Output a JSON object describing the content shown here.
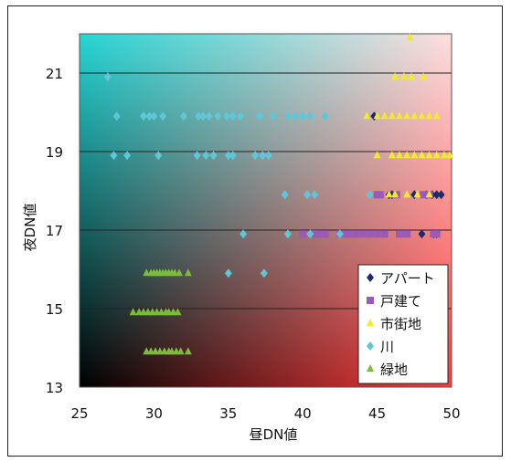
{
  "chart_data": {
    "type": "scatter",
    "title": "",
    "xlabel": "昼DN値",
    "ylabel": "夜DN値",
    "xlim": [
      25,
      50
    ],
    "ylim": [
      13,
      22
    ],
    "x_ticks": [
      "25",
      "30",
      "35",
      "40",
      "45",
      "50"
    ],
    "y_ticks": [
      "13",
      "15",
      "17",
      "19",
      "21"
    ],
    "horizontal_gridlines": true,
    "legend_position": "bottom-right",
    "series": [
      {
        "name": "アパート",
        "marker": "diamond",
        "color": "#1f2a6b",
        "points": [
          [
            46.0,
            17.9
          ],
          [
            47.5,
            17.9
          ],
          [
            48.3,
            17.9
          ],
          [
            48.7,
            17.9
          ],
          [
            49.0,
            17.9
          ],
          [
            49.3,
            17.9
          ],
          [
            48.0,
            16.9
          ],
          [
            48.8,
            16.9
          ],
          [
            49.0,
            16.9
          ],
          [
            44.8,
            19.9
          ],
          [
            45.8,
            17.9
          ]
        ]
      },
      {
        "name": "戸建て",
        "marker": "square",
        "color": "#9c59b6",
        "points": [
          [
            45.0,
            17.9
          ],
          [
            45.2,
            17.9
          ],
          [
            46.3,
            17.9
          ],
          [
            48.1,
            17.9
          ],
          [
            48.5,
            17.9
          ],
          [
            40.0,
            16.9
          ],
          [
            40.7,
            16.9
          ],
          [
            41.0,
            16.9
          ],
          [
            41.5,
            16.9
          ],
          [
            42.5,
            16.9
          ],
          [
            43.0,
            16.9
          ],
          [
            43.5,
            16.9
          ],
          [
            44.0,
            16.9
          ],
          [
            44.5,
            16.9
          ],
          [
            45.0,
            16.9
          ],
          [
            45.5,
            16.9
          ],
          [
            46.5,
            16.9
          ],
          [
            47.0,
            16.9
          ],
          [
            48.8,
            16.9
          ],
          [
            49.0,
            16.9
          ]
        ]
      },
      {
        "name": "市街地",
        "marker": "triangle",
        "color": "#f2ea2e",
        "points": [
          [
            47.2,
            21.9
          ],
          [
            46.2,
            20.9
          ],
          [
            46.8,
            20.9
          ],
          [
            47.3,
            20.9
          ],
          [
            48.1,
            20.9
          ],
          [
            44.3,
            19.9
          ],
          [
            45.0,
            19.9
          ],
          [
            45.5,
            19.9
          ],
          [
            46.0,
            19.9
          ],
          [
            46.5,
            19.9
          ],
          [
            47.0,
            19.9
          ],
          [
            47.5,
            19.9
          ],
          [
            48.0,
            19.9
          ],
          [
            48.5,
            19.9
          ],
          [
            49.0,
            19.9
          ],
          [
            45.0,
            18.9
          ],
          [
            46.0,
            18.9
          ],
          [
            46.5,
            18.9
          ],
          [
            47.0,
            18.9
          ],
          [
            47.5,
            18.9
          ],
          [
            48.0,
            18.9
          ],
          [
            48.5,
            18.9
          ],
          [
            49.0,
            18.9
          ],
          [
            49.5,
            18.9
          ],
          [
            50.0,
            18.9
          ],
          [
            45.8,
            17.9
          ],
          [
            46.2,
            17.9
          ],
          [
            47.0,
            17.9
          ],
          [
            47.7,
            17.9
          ],
          [
            48.5,
            17.9
          ]
        ]
      },
      {
        "name": "川",
        "marker": "diamond",
        "color": "#5fc6d6",
        "points": [
          [
            26.9,
            20.9
          ],
          [
            27.5,
            19.9
          ],
          [
            29.3,
            19.9
          ],
          [
            29.7,
            19.9
          ],
          [
            30.0,
            19.9
          ],
          [
            30.6,
            19.9
          ],
          [
            32.0,
            19.9
          ],
          [
            33.0,
            19.9
          ],
          [
            33.3,
            19.9
          ],
          [
            33.7,
            19.9
          ],
          [
            34.3,
            19.9
          ],
          [
            34.9,
            19.9
          ],
          [
            35.3,
            19.9
          ],
          [
            35.8,
            19.9
          ],
          [
            37.1,
            19.9
          ],
          [
            38.0,
            19.9
          ],
          [
            39.0,
            19.9
          ],
          [
            39.5,
            19.9
          ],
          [
            40.0,
            19.9
          ],
          [
            40.5,
            19.9
          ],
          [
            41.5,
            19.9
          ],
          [
            27.3,
            18.9
          ],
          [
            28.2,
            18.9
          ],
          [
            30.3,
            18.9
          ],
          [
            32.9,
            18.9
          ],
          [
            33.5,
            18.9
          ],
          [
            34.0,
            18.9
          ],
          [
            35.0,
            18.9
          ],
          [
            35.3,
            18.9
          ],
          [
            36.8,
            18.9
          ],
          [
            37.3,
            18.9
          ],
          [
            37.7,
            18.9
          ],
          [
            38.8,
            17.9
          ],
          [
            40.3,
            17.9
          ],
          [
            40.8,
            17.9
          ],
          [
            44.5,
            17.9
          ],
          [
            36.0,
            16.9
          ],
          [
            39.0,
            16.9
          ],
          [
            40.5,
            16.9
          ],
          [
            42.5,
            16.9
          ],
          [
            35.0,
            15.9
          ],
          [
            37.4,
            15.9
          ]
        ]
      },
      {
        "name": "緑地",
        "marker": "triangle",
        "color": "#7bbd3a",
        "points": [
          [
            29.5,
            15.9
          ],
          [
            29.8,
            15.9
          ],
          [
            30.0,
            15.9
          ],
          [
            30.2,
            15.9
          ],
          [
            30.4,
            15.9
          ],
          [
            30.6,
            15.9
          ],
          [
            30.8,
            15.9
          ],
          [
            31.0,
            15.9
          ],
          [
            31.2,
            15.9
          ],
          [
            31.4,
            15.9
          ],
          [
            31.7,
            15.9
          ],
          [
            32.3,
            15.9
          ],
          [
            28.6,
            14.9
          ],
          [
            29.0,
            14.9
          ],
          [
            29.3,
            14.9
          ],
          [
            29.6,
            14.9
          ],
          [
            29.9,
            14.9
          ],
          [
            30.2,
            14.9
          ],
          [
            30.5,
            14.9
          ],
          [
            30.8,
            14.9
          ],
          [
            31.0,
            14.9
          ],
          [
            31.3,
            14.9
          ],
          [
            31.6,
            14.9
          ],
          [
            29.5,
            13.9
          ],
          [
            29.8,
            13.9
          ],
          [
            30.1,
            13.9
          ],
          [
            30.4,
            13.9
          ],
          [
            30.7,
            13.9
          ],
          [
            31.0,
            13.9
          ],
          [
            31.2,
            13.9
          ],
          [
            31.5,
            13.9
          ],
          [
            31.8,
            13.9
          ],
          [
            32.3,
            13.9
          ]
        ]
      }
    ]
  }
}
